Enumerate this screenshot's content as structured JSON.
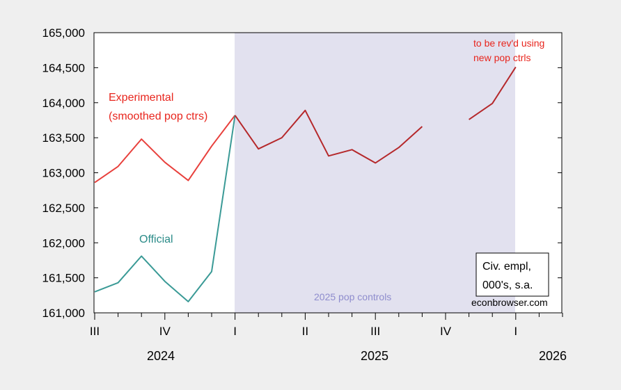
{
  "chart_data": {
    "type": "line",
    "y_ticks": [
      "165,000",
      "164,500",
      "164,000",
      "163,500",
      "163,000",
      "162,500",
      "162,000",
      "161,500",
      "161,000"
    ],
    "ylim": [
      161000,
      165000
    ],
    "quarter_labels": [
      "III",
      "IV",
      "I",
      "II",
      "III",
      "IV",
      "I"
    ],
    "year_labels": [
      "2024",
      "2025",
      "2026"
    ],
    "shading": {
      "label": "2025 pop controls",
      "color": "#e2e1ef"
    },
    "annotations": {
      "experimental_line1": "Experimental",
      "experimental_line2": "(smoothed pop ctrs)",
      "official": "Official",
      "revision_line1": "to be rev'd using",
      "revision_line2": "new pop ctrls",
      "legend_line1": "Civ. empl,",
      "legend_line2": "000's, s.a.",
      "source": "econbrowser.com"
    },
    "series": [
      {
        "color": "#e8403c",
        "x": [
          "2024-07",
          "2024-08",
          "2024-09",
          "2024-10",
          "2024-11",
          "2024-12",
          "2025-01"
        ],
        "values": [
          162860,
          163090,
          163480,
          163150,
          162890,
          163380,
          163820
        ]
      },
      {
        "color": "#3a9a96",
        "x": [
          "2024-07",
          "2024-08",
          "2024-09",
          "2024-10",
          "2024-11",
          "2024-12",
          "2025-01"
        ],
        "values": [
          161300,
          161430,
          161810,
          161450,
          161160,
          161590,
          163820
        ]
      },
      {
        "color": "#b5282b",
        "x": [
          "2025-01",
          "2025-02",
          "2025-03",
          "2025-04",
          "2025-05",
          "2025-06",
          "2025-07",
          "2025-08",
          "2025-09",
          "2025-10",
          "2025-11",
          "2025-12",
          "2026-01"
        ],
        "values": [
          163820,
          163340,
          163500,
          163890,
          163240,
          163330,
          163140,
          163360,
          163660,
          null,
          163760,
          163990,
          164510
        ]
      }
    ]
  }
}
